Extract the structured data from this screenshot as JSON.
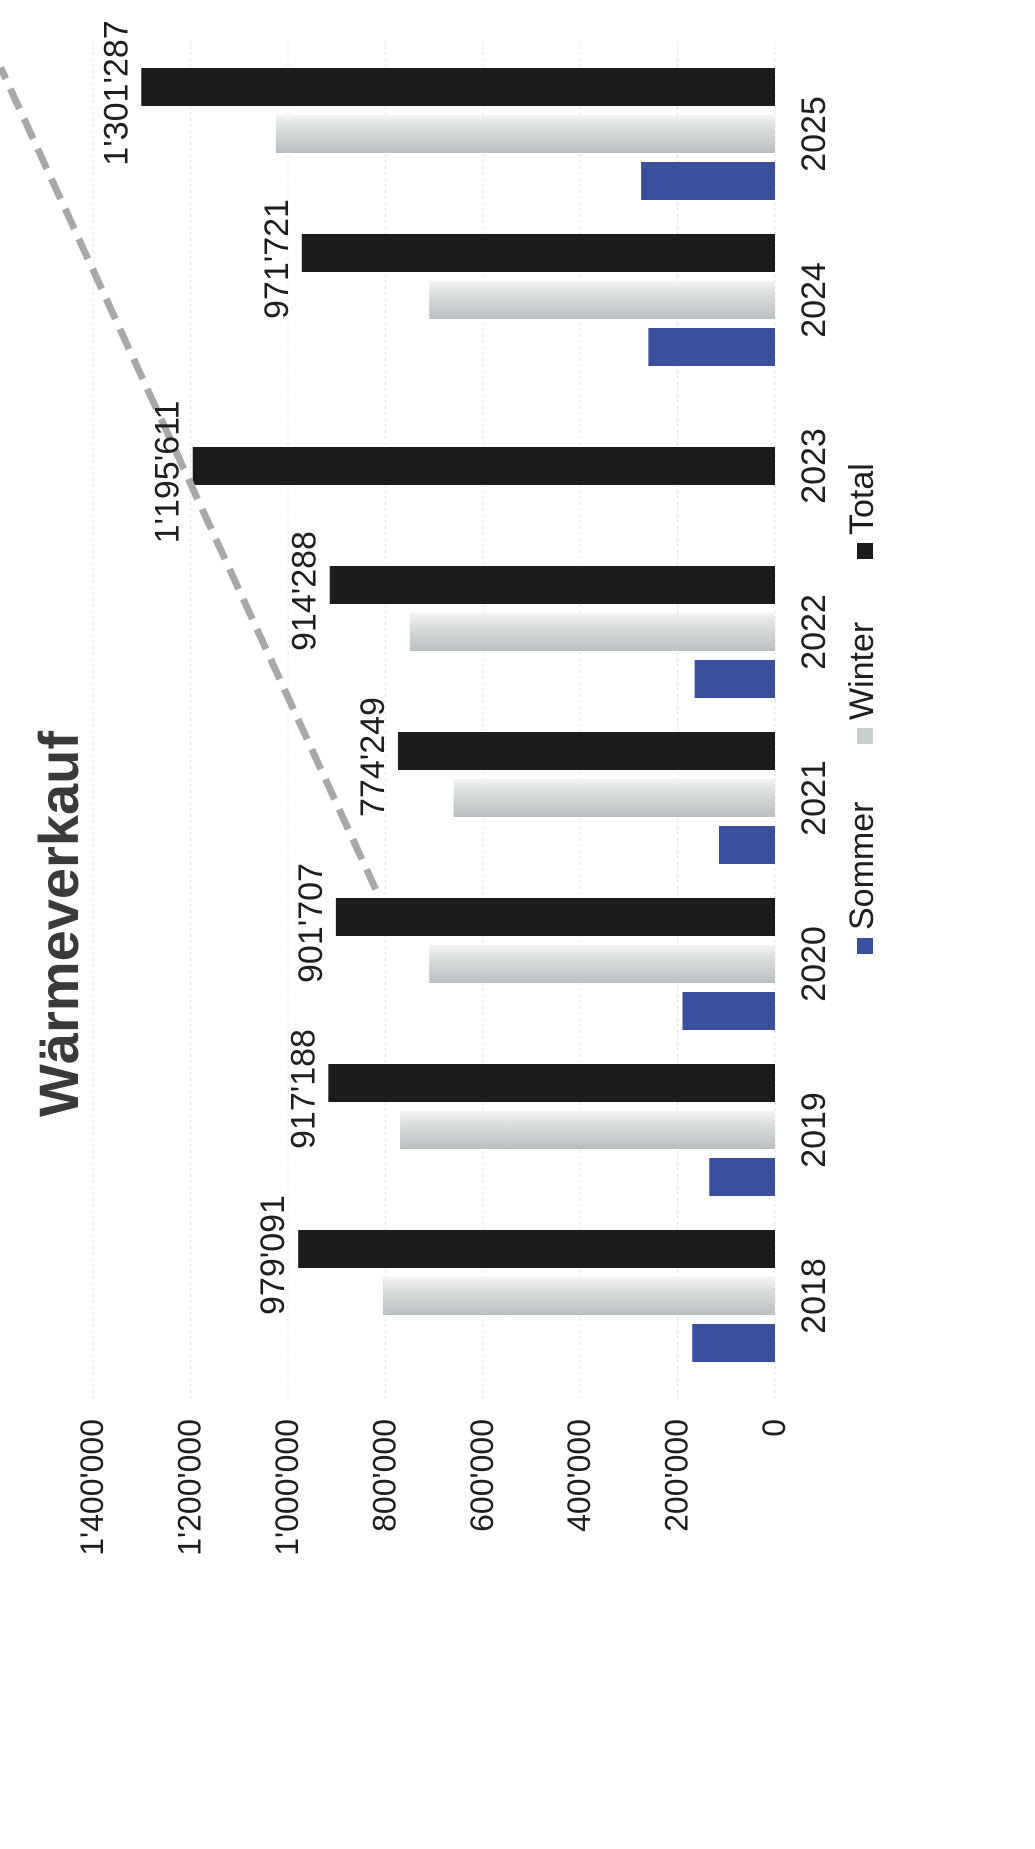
{
  "chart_data": {
    "type": "bar",
    "title": "Wärmeverkauf",
    "categories": [
      "2018",
      "2019",
      "2020",
      "2021",
      "2022",
      "2023",
      "2024",
      "2025"
    ],
    "series": [
      {
        "name": "Sommer",
        "values": [
          170000,
          135000,
          190000,
          115000,
          165000,
          null,
          260000,
          275000
        ]
      },
      {
        "name": "Winter",
        "values": [
          805000,
          770000,
          710000,
          660000,
          750000,
          null,
          710000,
          1025000
        ]
      },
      {
        "name": "Total",
        "values": [
          979091,
          917188,
          901707,
          774249,
          914288,
          1195611,
          971721,
          1301287
        ]
      }
    ],
    "data_labels": [
      "979'091",
      "917'188",
      "901'707",
      "774'249",
      "914'288",
      "1'195'611",
      "971'721",
      "1'301'287"
    ],
    "y_ticks": [
      0,
      200000,
      400000,
      600000,
      800000,
      1000000,
      1200000,
      1400000
    ],
    "y_tick_labels": [
      "0",
      "200'000",
      "400'000",
      "600'000",
      "800'000",
      "1'000'000",
      "1'200'000",
      "1'400'000"
    ],
    "ylim": [
      0,
      1400000
    ],
    "trendline": {
      "style": "dashed",
      "from": [
        "2021",
        820000
      ],
      "to": [
        "2025",
        1590000
      ]
    },
    "legend": {
      "position": "bottom",
      "entries": [
        "Sommer",
        "Winter",
        "Total"
      ]
    },
    "orientation": "rotated-90-ccw",
    "grid": true,
    "colors": {
      "Sommer": "#3a4f9e",
      "Winter": "#c9cecf",
      "Total": "#1c1c1c",
      "trendline": "#a8a8a8"
    }
  }
}
